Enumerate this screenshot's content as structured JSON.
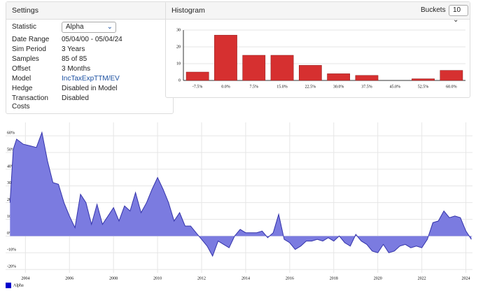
{
  "settings": {
    "title": "Settings",
    "rows": [
      {
        "label": "Statistic",
        "value": "Alpha"
      },
      {
        "label": "Date Range",
        "value": "05/04/00 - 05/04/24"
      },
      {
        "label": "Sim Period",
        "value": "3 Years"
      },
      {
        "label": "Samples",
        "value": "85 of 85"
      },
      {
        "label": "Offset",
        "value": "3 Months"
      },
      {
        "label": "Model",
        "value": "IncTaxExpTTM/EV"
      },
      {
        "label": "Hedge",
        "value": "Disabled in Model"
      },
      {
        "label": "Transaction Costs",
        "value": "Disabled"
      }
    ]
  },
  "histogram_panel": {
    "title": "Histogram",
    "buckets_label": "Buckets",
    "buckets_value": 10
  },
  "chart_data": [
    {
      "type": "bar",
      "categories": [
        "-7.5%",
        "0.0%",
        "7.5%",
        "15.0%",
        "22.5%",
        "30.0%",
        "37.5%",
        "45.0%",
        "52.5%",
        "60.0%"
      ],
      "values": [
        5,
        27,
        15,
        15,
        9,
        4,
        3,
        0,
        1,
        6
      ],
      "color": "#d63030",
      "ylim": [
        0,
        30
      ],
      "yticks": [
        0,
        10,
        20,
        30
      ],
      "grid": true
    },
    {
      "type": "area",
      "x": [
        2003.3,
        2003.45,
        2003.6,
        2003.9,
        2004.2,
        2004.5,
        2004.75,
        2005.0,
        2005.25,
        2005.5,
        2005.75,
        2006.0,
        2006.25,
        2006.5,
        2006.75,
        2007.0,
        2007.25,
        2007.5,
        2007.75,
        2008.0,
        2008.25,
        2008.5,
        2008.75,
        2009.0,
        2009.25,
        2009.5,
        2009.75,
        2010.0,
        2010.25,
        2010.5,
        2010.75,
        2011.0,
        2011.25,
        2011.5,
        2011.75,
        2012.0,
        2012.25,
        2012.5,
        2012.75,
        2013.0,
        2013.25,
        2013.5,
        2013.75,
        2014.0,
        2014.25,
        2014.5,
        2014.75,
        2015.0,
        2015.25,
        2015.5,
        2015.75,
        2016.0,
        2016.25,
        2016.5,
        2016.75,
        2017.0,
        2017.25,
        2017.5,
        2017.75,
        2018.0,
        2018.25,
        2018.5,
        2018.75,
        2019.0,
        2019.25,
        2019.5,
        2019.75,
        2020.0,
        2020.25,
        2020.5,
        2020.75,
        2021.0,
        2021.25,
        2021.5,
        2021.75,
        2022.0,
        2022.25,
        2022.5,
        2022.75,
        2023.0,
        2023.25,
        2023.5,
        2023.75,
        2024.0,
        2024.25
      ],
      "series": [
        {
          "name": "Alpha",
          "color": "#0000cc",
          "fill": "#7b7be0",
          "stroke": "#3333aa",
          "values": [
            20,
            52,
            58,
            55,
            54,
            53,
            62,
            45,
            32,
            31,
            20,
            12,
            5,
            25,
            20,
            7,
            19,
            7,
            12,
            17,
            9,
            18,
            15,
            26,
            14,
            20,
            28,
            35,
            28,
            20,
            9,
            14,
            6,
            6,
            2,
            -2,
            -6,
            -12,
            -3,
            -5,
            -7,
            0,
            4,
            2,
            2,
            2,
            3,
            -1,
            2,
            13,
            -2,
            -4,
            -8,
            -6,
            -3,
            -3,
            -2,
            -3,
            -1,
            -3,
            0,
            -4,
            -6,
            1,
            -3,
            -5,
            -9,
            -10,
            -5,
            -10,
            -9,
            -6,
            -5,
            -7,
            -6,
            -7,
            -2,
            8,
            9,
            15,
            11,
            12,
            11,
            3,
            -2
          ]
        }
      ],
      "xlim": [
        2003.1,
        2024.3
      ],
      "xticks": [
        2004,
        2006,
        2008,
        2010,
        2012,
        2014,
        2016,
        2018,
        2020,
        2022,
        2024
      ],
      "ylim": [
        -22,
        68
      ],
      "yticks": [
        {
          "value": -20,
          "label": "-20%"
        },
        {
          "value": -10,
          "label": "-10%"
        },
        {
          "value": 0,
          "label": "0%"
        },
        {
          "value": 10,
          "label": "10%"
        },
        {
          "value": 20,
          "label": "20%"
        },
        {
          "value": 30,
          "label": "30%"
        },
        {
          "value": 40,
          "label": "40%"
        },
        {
          "value": 50,
          "label": "50%"
        },
        {
          "value": 60,
          "label": "60%"
        }
      ],
      "grid": true,
      "legend": "bottom-left"
    }
  ]
}
